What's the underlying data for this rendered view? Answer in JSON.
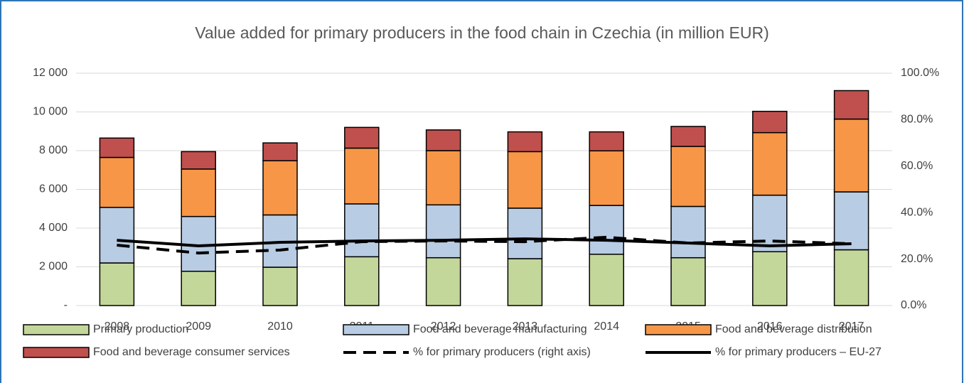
{
  "chart_data": {
    "type": "bar",
    "title": "Value added for primary producers in the food chain in Czechia (in million EUR)",
    "categories": [
      "2008",
      "2009",
      "2010",
      "2011",
      "2012",
      "2013",
      "2014",
      "2015",
      "2016",
      "2017"
    ],
    "series": [
      {
        "name": "Primary production",
        "color": "#c4d79b",
        "values": [
          2200,
          1770,
          1980,
          2520,
          2470,
          2420,
          2650,
          2470,
          2780,
          2880
        ]
      },
      {
        "name": "Food and beverage manufacturing",
        "color": "#b8cce4",
        "values": [
          2870,
          2830,
          2700,
          2730,
          2730,
          2610,
          2520,
          2650,
          2920,
          2990
        ]
      },
      {
        "name": "Food and beverage distribution",
        "color": "#f79646",
        "values": [
          2580,
          2450,
          2800,
          2880,
          2800,
          2920,
          2820,
          3100,
          3230,
          3760
        ]
      },
      {
        "name": "Food and beverage consumer services",
        "color": "#c0504d",
        "values": [
          1000,
          900,
          920,
          1070,
          1070,
          1020,
          980,
          1030,
          1100,
          1470
        ]
      },
      {
        "name": "% for primary producers (right axis)",
        "color": "#000000",
        "type": "line",
        "dash": true,
        "axis": "y2",
        "values": [
          26.0,
          22.6,
          23.9,
          27.5,
          27.8,
          27.5,
          29.4,
          26.9,
          27.8,
          26.6
        ]
      },
      {
        "name": "% for primary producers – EU-27",
        "color": "#000000",
        "type": "line",
        "dash": false,
        "axis": "y2",
        "values": [
          28.1,
          25.7,
          27.2,
          27.8,
          28.1,
          28.7,
          28.1,
          26.9,
          25.7,
          26.6
        ]
      }
    ],
    "ylim": [
      0,
      12000
    ],
    "yticks": [
      {
        "value": 0,
        "label": "-"
      },
      {
        "value": 2000,
        "label": "2 000"
      },
      {
        "value": 4000,
        "label": "4 000"
      },
      {
        "value": 6000,
        "label": "6 000"
      },
      {
        "value": 8000,
        "label": "8 000"
      },
      {
        "value": 10000,
        "label": "10 000"
      },
      {
        "value": 12000,
        "label": "12 000"
      }
    ],
    "y2lim": [
      0,
      100
    ],
    "y2ticks": [
      {
        "value": 0,
        "label": "0.0%"
      },
      {
        "value": 20,
        "label": "20.0%"
      },
      {
        "value": 40,
        "label": "40.0%"
      },
      {
        "value": 60,
        "label": "60.0%"
      },
      {
        "value": 80,
        "label": "80.0%"
      },
      {
        "value": 100,
        "label": "100.0%"
      }
    ],
    "grid": true,
    "legend": "bottom"
  }
}
